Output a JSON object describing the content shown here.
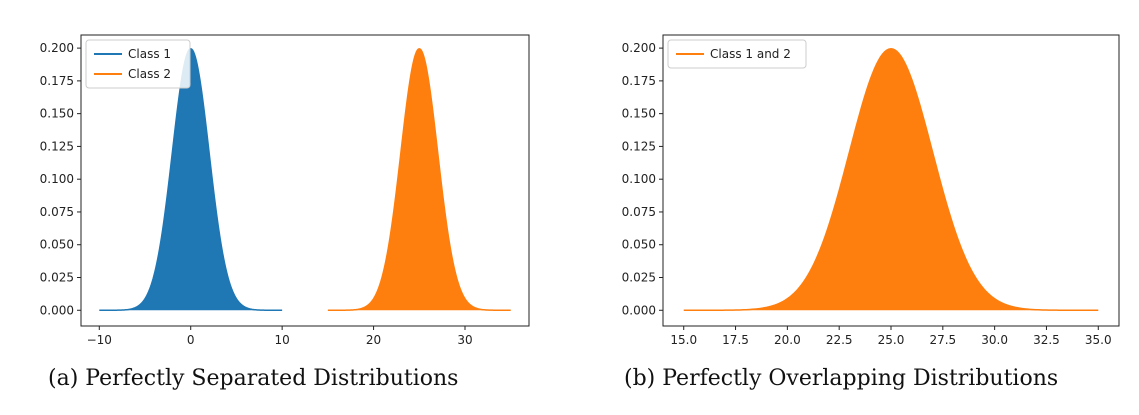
{
  "chart_data": [
    {
      "type": "area",
      "caption": "(a) Perfectly Separated Distributions",
      "xlim": [
        -12,
        37
      ],
      "ylim": [
        -0.012,
        0.21
      ],
      "xticks": [
        -10,
        0,
        10,
        20,
        30
      ],
      "xtick_labels": [
        "−10",
        "0",
        "10",
        "20",
        "30"
      ],
      "yticks": [
        0.0,
        0.025,
        0.05,
        0.075,
        0.1,
        0.125,
        0.15,
        0.175,
        0.2
      ],
      "ytick_labels": [
        "0.000",
        "0.025",
        "0.050",
        "0.075",
        "0.100",
        "0.125",
        "0.150",
        "0.175",
        "0.200"
      ],
      "legend_position": "top-left",
      "series": [
        {
          "name": "Class 1",
          "distribution": "normal",
          "mean": 0,
          "std": 2,
          "x_range": [
            -10,
            10
          ],
          "color": "#1f77b4",
          "filled": true
        },
        {
          "name": "Class 2",
          "distribution": "normal",
          "mean": 25,
          "std": 2,
          "x_range": [
            15,
            35
          ],
          "color": "#ff7f0e",
          "filled": true
        }
      ]
    },
    {
      "type": "area",
      "caption": "(b) Perfectly Overlapping Distributions",
      "xlim": [
        14.0,
        36.0
      ],
      "ylim": [
        -0.012,
        0.21
      ],
      "xticks": [
        15.0,
        17.5,
        20.0,
        22.5,
        25.0,
        27.5,
        30.0,
        32.5,
        35.0
      ],
      "xtick_labels": [
        "15.0",
        "17.5",
        "20.0",
        "22.5",
        "25.0",
        "27.5",
        "30.0",
        "32.5",
        "35.0"
      ],
      "yticks": [
        0.0,
        0.025,
        0.05,
        0.075,
        0.1,
        0.125,
        0.15,
        0.175,
        0.2
      ],
      "ytick_labels": [
        "0.000",
        "0.025",
        "0.050",
        "0.075",
        "0.100",
        "0.125",
        "0.150",
        "0.175",
        "0.200"
      ],
      "legend_position": "top-left",
      "series": [
        {
          "name": "Class 1 and 2",
          "distribution": "normal",
          "mean": 25,
          "std": 2,
          "x_range": [
            15,
            35
          ],
          "color": "#ff7f0e",
          "filled": true
        }
      ]
    }
  ]
}
